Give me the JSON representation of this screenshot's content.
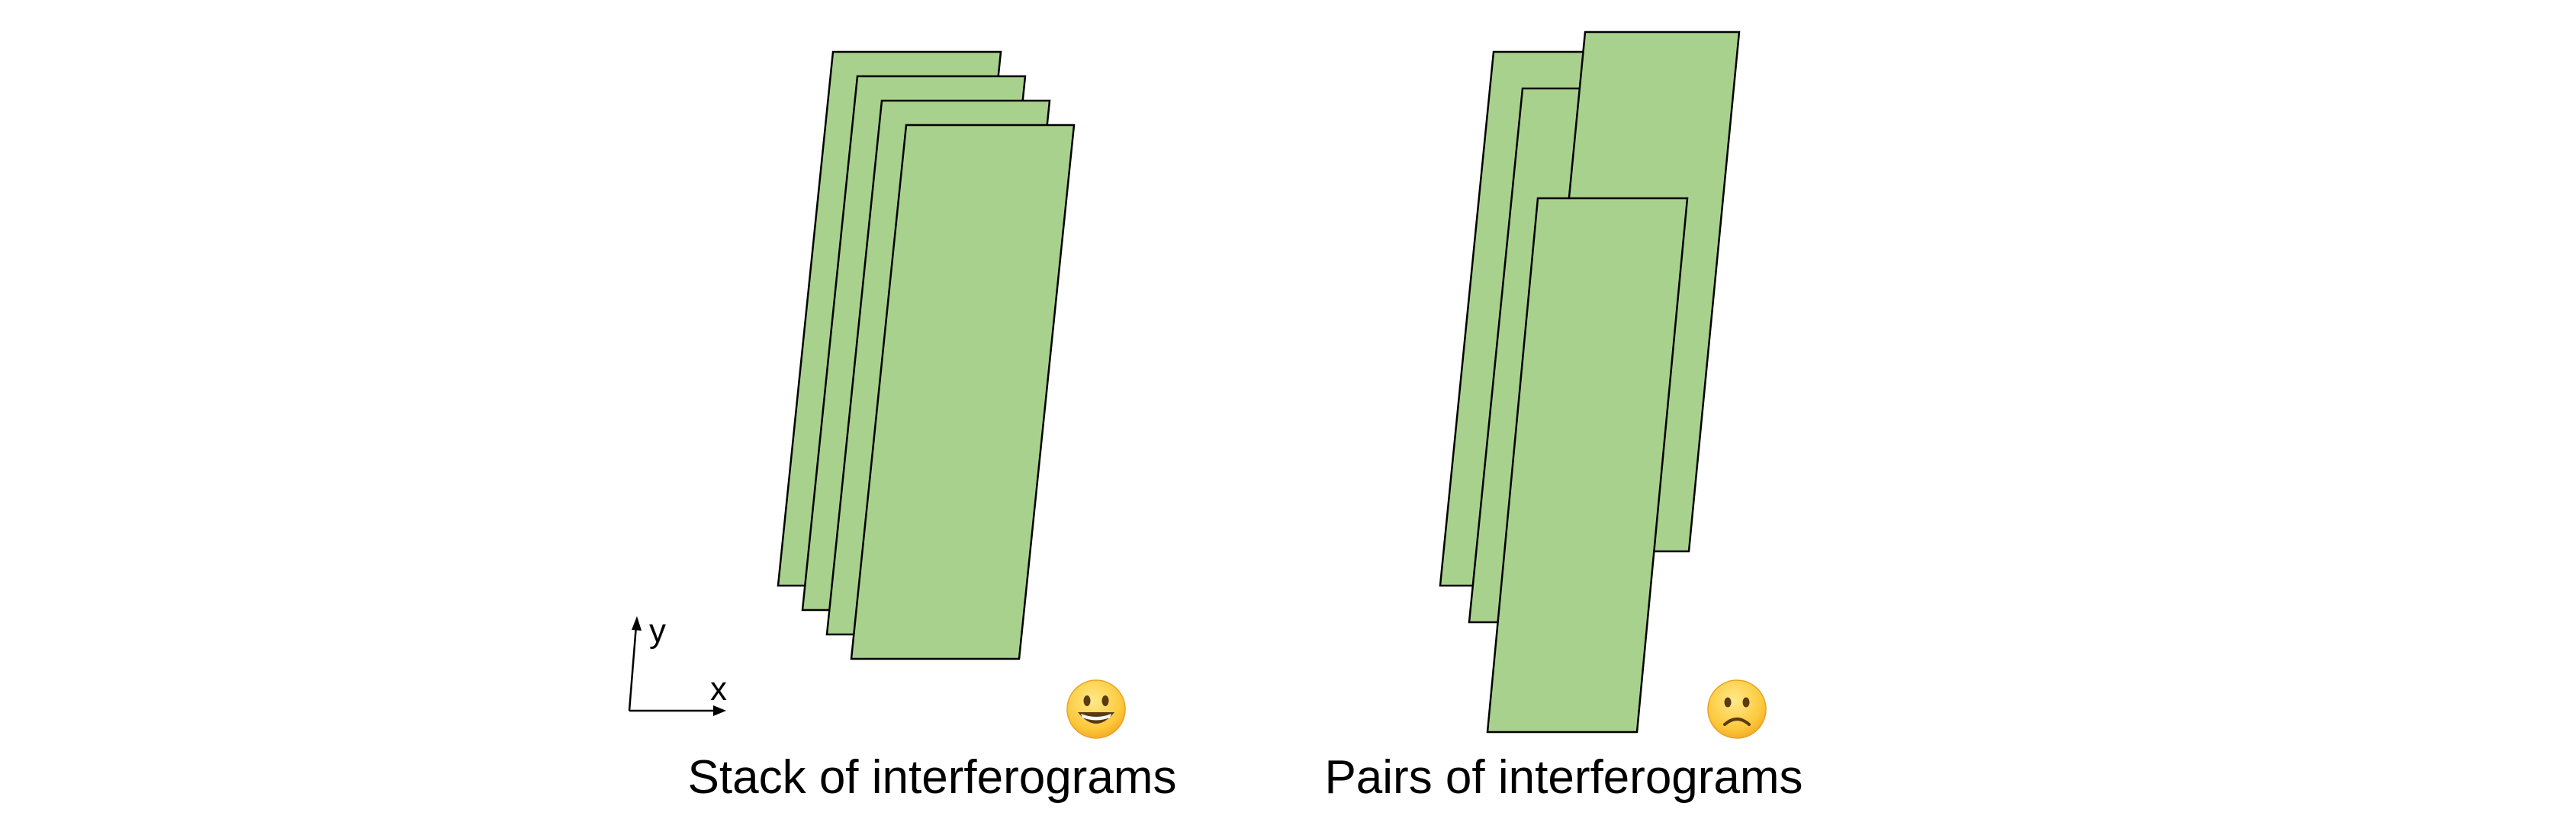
{
  "colors": {
    "strip_fill": "#a9d18e",
    "strip_stroke": "#000000",
    "background": "#ffffff"
  },
  "axes": {
    "x_label": "x",
    "y_label": "y"
  },
  "panels": {
    "stack": {
      "caption": "Stack of interferograms",
      "face_icon": "smiling-face-icon"
    },
    "pairs": {
      "caption": "Pairs of interferograms",
      "face_icon": "frowning-face-icon"
    }
  }
}
